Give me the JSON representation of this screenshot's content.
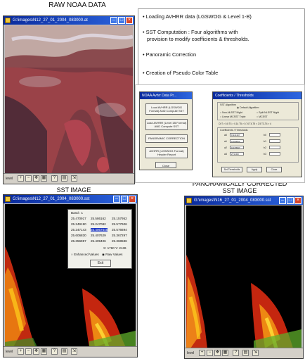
{
  "titles": {
    "raw": "RAW NOAA DATA",
    "sst": "SST IMAGE",
    "panoramic_line1": "PANORAMICALLY CORRECTED",
    "panoramic_line2": "SST IMAGE"
  },
  "windows": {
    "raw": {
      "title": "G:\\images\\N12_27_01_2004_083000.at"
    },
    "sst": {
      "title": "G:\\images\\N12_27_01_2004_083000.sst"
    },
    "pano": {
      "title": "G:\\images\\N16_27_01_2004_083000.sst"
    },
    "toolbar_label": "level"
  },
  "bullets": [
    "Loading AVHRR data (LGSWOG & Level 1-B)",
    "SST Computation : Four algorithms with",
    "provision to modify coefficients & thresholds.",
    "Panoramic Correction",
    "Creation of Pseudo Color Table"
  ],
  "avhrr_dialog": {
    "title": "NOAA Avhrr Data Pr...",
    "buttons": [
      "Load AVHRR (LGSWOG Format) AND Compute SST",
      "Load AVHRR (Level 1B Format) AND Compute SST",
      "PANORAMIC CORRECTION",
      "AVHRR (LGSWOG Format) Header Report",
      "Close"
    ]
  },
  "coeff_dialog": {
    "title": "Coefficients / Thresholds",
    "group_label": "SST Algorithm",
    "radios": [
      "Default Algorithm",
      "Non-NLSST Night",
      "Split NLSST Night",
      "Linear MCSST Triple",
      "MCSST"
    ],
    "threshold_label": "ChT > 0.8 T4 > 0.14 T5 > 0.74 T4-T5 < 2.5 T3-T4 > 4",
    "coeff_label": "Coefficients / Thresholds",
    "fields": [
      "a0",
      "a1",
      "a2",
      "a3",
      "b0",
      "b1",
      "b2",
      "b3"
    ],
    "values": [
      "0.941307",
      "0.069832",
      "0.079537",
      "273.000",
      "",
      "",
      "",
      ""
    ],
    "buttons": [
      "Set Thresholds",
      "Apply",
      "Close"
    ]
  },
  "band_dialog": {
    "band_label": "Band : 1",
    "rows": [
      [
        "25.470917",
        "25.586162",
        "25.157952"
      ],
      [
        "25.249190",
        "25.247082",
        "25.577606"
      ],
      [
        "25.247143",
        "25.4067645",
        "25.576694"
      ],
      [
        "25.606830",
        "25.407629",
        "25.367297"
      ],
      [
        "25.356957",
        "25.409406",
        "25.368586"
      ]
    ],
    "coords": "X: 1760  Y: 2136",
    "options": [
      "Enhanced Values",
      "Raw Values"
    ],
    "exit": "Exit"
  },
  "colors": {
    "titlebar": "#0a2a9c",
    "selected_cell": "#1b36c2"
  }
}
